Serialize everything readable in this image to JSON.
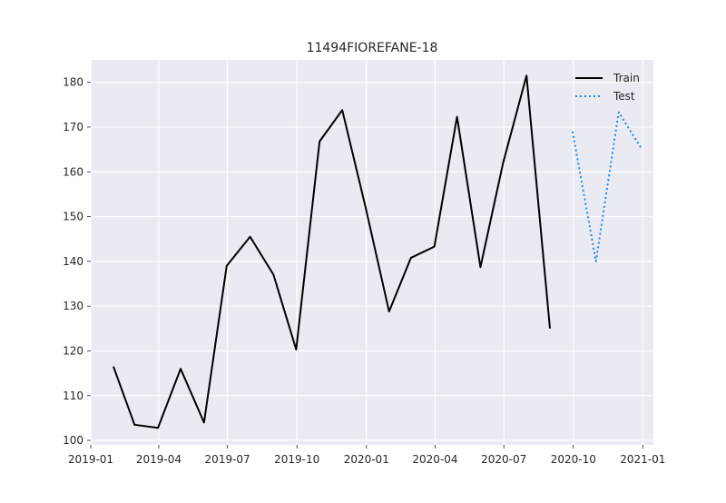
{
  "chart_data": {
    "type": "line",
    "title": "11494FIOREFANE-18",
    "xlabel": "",
    "ylabel": "",
    "grid": true,
    "legend_position": "top-right",
    "xlim": [
      "2019-01-01",
      "2021-01-15"
    ],
    "ylim": [
      99,
      185
    ],
    "x_ticks": [
      "2019-01",
      "2019-04",
      "2019-07",
      "2019-10",
      "2020-01",
      "2020-04",
      "2020-07",
      "2020-10",
      "2021-01"
    ],
    "y_ticks": [
      100,
      110,
      120,
      130,
      140,
      150,
      160,
      170,
      180
    ],
    "series": [
      {
        "name": "Train",
        "color": "#000000",
        "line_style": "solid",
        "x": [
          "2019-01-31",
          "2019-02-28",
          "2019-03-31",
          "2019-04-30",
          "2019-05-31",
          "2019-06-30",
          "2019-07-31",
          "2019-08-31",
          "2019-09-30",
          "2019-10-31",
          "2019-11-30",
          "2019-12-31",
          "2020-01-31",
          "2020-02-29",
          "2020-03-31",
          "2020-04-30",
          "2020-05-31",
          "2020-06-30",
          "2020-07-31",
          "2020-08-31"
        ],
        "y": [
          116.5,
          103.5,
          102.8,
          116.0,
          104.0,
          139.0,
          145.5,
          137.0,
          120.3,
          166.8,
          173.8,
          152.0,
          128.8,
          140.8,
          143.3,
          172.3,
          138.7,
          162.0,
          181.5,
          125.0
        ]
      },
      {
        "name": "Test",
        "color": "#1e88e5",
        "line_style": "dotted",
        "x": [
          "2020-09-30",
          "2020-10-31",
          "2020-11-30",
          "2020-12-31"
        ],
        "y": [
          169.0,
          140.0,
          173.3,
          165.0
        ]
      }
    ]
  }
}
